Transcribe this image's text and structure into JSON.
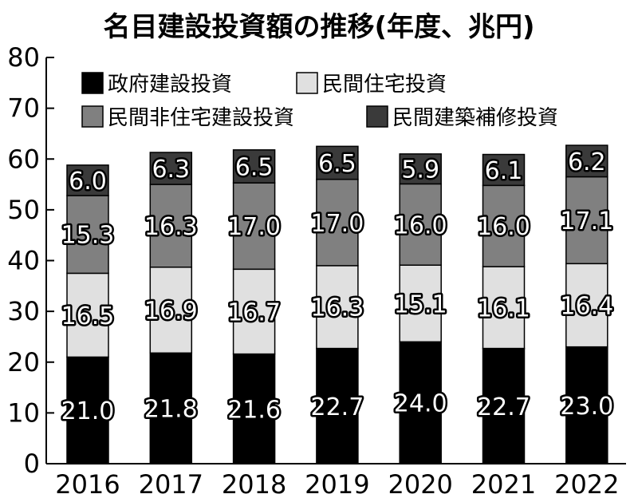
{
  "chart_data": {
    "type": "bar",
    "stacked": true,
    "title": "名目建設投資額の推移(年度、兆円)",
    "xlabel": "",
    "ylabel": "",
    "ylim": [
      0,
      80
    ],
    "yticks": [
      0,
      10,
      20,
      30,
      40,
      50,
      60,
      70,
      80
    ],
    "grid": false,
    "legend_position": "top-left",
    "categories": [
      "2016",
      "2017",
      "2018",
      "2019",
      "2020",
      "2021",
      "2022"
    ],
    "series": [
      {
        "name": "政府建設投資",
        "color": "#000000",
        "values": [
          21.0,
          21.8,
          21.6,
          22.7,
          24.0,
          22.7,
          23.0
        ]
      },
      {
        "name": "民間住宅投資",
        "color": "#e0e0e0",
        "values": [
          16.5,
          16.9,
          16.7,
          16.3,
          15.1,
          16.1,
          16.4
        ]
      },
      {
        "name": "民間非住宅建設投資",
        "color": "#808080",
        "values": [
          15.3,
          16.3,
          17.0,
          17.0,
          16.0,
          16.0,
          17.1
        ]
      },
      {
        "name": "民間建築補修投資",
        "color": "#3a3a3a",
        "values": [
          6.0,
          6.3,
          6.5,
          6.5,
          5.9,
          6.1,
          6.2
        ]
      }
    ]
  }
}
